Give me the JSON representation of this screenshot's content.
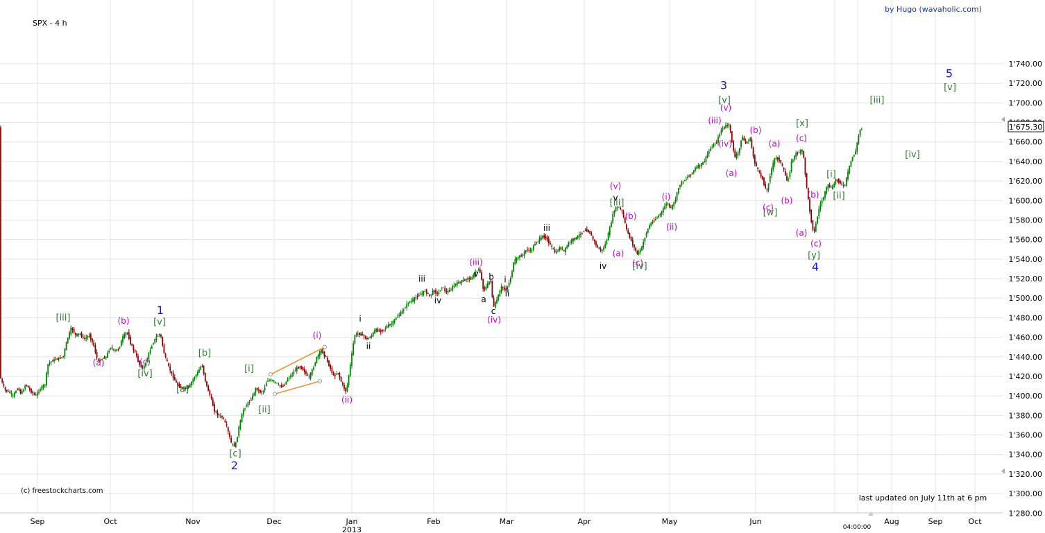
{
  "header": {
    "symbol_label": "SPX - 4 h",
    "author": "by Hugo (wavaholic.com)",
    "copyright": "(c) freestockcharts.com",
    "last_updated": "last updated on July 11th at 6 pm",
    "time_readout": "04:00:00"
  },
  "colors": {
    "up_candle": "#008000",
    "down_candle": "#8b0000",
    "grid": "#e4e4e4",
    "wave_primary": "#1a1acc",
    "wave_intermediate": "#2e7d32",
    "wave_minor": "#cc00cc",
    "wave_minute": "#000000",
    "channel_line": "#f0922b"
  },
  "chart_data": {
    "type": "candlestick",
    "title": "SPX - 4 h",
    "ylim": [
      1270,
      1745
    ],
    "y_ticks": [
      "1'280.00",
      "1'300.00",
      "1'320.00",
      "1'340.00",
      "1'360.00",
      "1'380.00",
      "1'400.00",
      "1'420.00",
      "1'440.00",
      "1'460.00",
      "1'480.00",
      "1'500.00",
      "1'520.00",
      "1'540.00",
      "1'560.00",
      "1'580.00",
      "1'600.00",
      "1'620.00",
      "1'640.00",
      "1'660.00",
      "1'680.00",
      "1'700.00",
      "1'720.00",
      "1'740.00"
    ],
    "x_ticks": [
      "Sep",
      "Oct",
      "Nov",
      "Dec",
      "Jan",
      "Feb",
      "Mar",
      "Apr",
      "May",
      "Jun",
      "Aug",
      "Sep",
      "Oct"
    ],
    "x_year_label": "2013",
    "last_price": "1'675.30",
    "price_path": [
      [
        0,
        1422
      ],
      [
        8,
        1406
      ],
      [
        14,
        1404
      ],
      [
        20,
        1400
      ],
      [
        26,
        1408
      ],
      [
        32,
        1402
      ],
      [
        38,
        1412
      ],
      [
        44,
        1406
      ],
      [
        52,
        1400
      ],
      [
        60,
        1408
      ],
      [
        66,
        1412
      ],
      [
        70,
        1432
      ],
      [
        76,
        1436
      ],
      [
        84,
        1438
      ],
      [
        92,
        1440
      ],
      [
        98,
        1458
      ],
      [
        104,
        1470
      ],
      [
        110,
        1462
      ],
      [
        116,
        1464
      ],
      [
        122,
        1458
      ],
      [
        130,
        1462
      ],
      [
        136,
        1452
      ],
      [
        142,
        1435
      ],
      [
        148,
        1438
      ],
      [
        154,
        1440
      ],
      [
        160,
        1450
      ],
      [
        166,
        1446
      ],
      [
        172,
        1448
      ],
      [
        178,
        1460
      ],
      [
        184,
        1466
      ],
      [
        190,
        1452
      ],
      [
        196,
        1444
      ],
      [
        202,
        1432
      ],
      [
        208,
        1428
      ],
      [
        214,
        1440
      ],
      [
        220,
        1452
      ],
      [
        226,
        1460
      ],
      [
        232,
        1464
      ],
      [
        238,
        1442
      ],
      [
        244,
        1430
      ],
      [
        250,
        1420
      ],
      [
        256,
        1412
      ],
      [
        262,
        1408
      ],
      [
        268,
        1408
      ],
      [
        274,
        1410
      ],
      [
        280,
        1418
      ],
      [
        286,
        1424
      ],
      [
        292,
        1432
      ],
      [
        298,
        1412
      ],
      [
        304,
        1400
      ],
      [
        310,
        1385
      ],
      [
        316,
        1380
      ],
      [
        322,
        1378
      ],
      [
        328,
        1368
      ],
      [
        334,
        1352
      ],
      [
        340,
        1348
      ],
      [
        346,
        1370
      ],
      [
        352,
        1386
      ],
      [
        358,
        1392
      ],
      [
        364,
        1398
      ],
      [
        370,
        1408
      ],
      [
        376,
        1404
      ],
      [
        380,
        1404
      ],
      [
        386,
        1416
      ],
      [
        392,
        1416
      ],
      [
        398,
        1414
      ],
      [
        404,
        1410
      ],
      [
        410,
        1410
      ],
      [
        416,
        1418
      ],
      [
        422,
        1422
      ],
      [
        428,
        1428
      ],
      [
        434,
        1430
      ],
      [
        440,
        1425
      ],
      [
        446,
        1418
      ],
      [
        452,
        1428
      ],
      [
        458,
        1440
      ],
      [
        464,
        1447
      ],
      [
        470,
        1440
      ],
      [
        476,
        1430
      ],
      [
        482,
        1420
      ],
      [
        488,
        1424
      ],
      [
        494,
        1412
      ],
      [
        500,
        1404
      ],
      [
        506,
        1432
      ],
      [
        512,
        1462
      ],
      [
        518,
        1464
      ],
      [
        524,
        1462
      ],
      [
        530,
        1458
      ],
      [
        536,
        1461
      ],
      [
        542,
        1468
      ],
      [
        548,
        1466
      ],
      [
        554,
        1468
      ],
      [
        560,
        1472
      ],
      [
        566,
        1474
      ],
      [
        572,
        1480
      ],
      [
        578,
        1484
      ],
      [
        584,
        1490
      ],
      [
        590,
        1496
      ],
      [
        596,
        1498
      ],
      [
        602,
        1502
      ],
      [
        608,
        1504
      ],
      [
        614,
        1508
      ],
      [
        620,
        1502
      ],
      [
        626,
        1508
      ],
      [
        632,
        1504
      ],
      [
        638,
        1512
      ],
      [
        644,
        1506
      ],
      [
        650,
        1508
      ],
      [
        656,
        1514
      ],
      [
        662,
        1516
      ],
      [
        668,
        1518
      ],
      [
        674,
        1520
      ],
      [
        680,
        1520
      ],
      [
        686,
        1526
      ],
      [
        692,
        1530
      ],
      [
        698,
        1508
      ],
      [
        704,
        1514
      ],
      [
        708,
        1520
      ],
      [
        712,
        1490
      ],
      [
        718,
        1500
      ],
      [
        724,
        1512
      ],
      [
        730,
        1508
      ],
      [
        736,
        1518
      ],
      [
        742,
        1538
      ],
      [
        748,
        1542
      ],
      [
        754,
        1544
      ],
      [
        760,
        1550
      ],
      [
        766,
        1548
      ],
      [
        772,
        1556
      ],
      [
        778,
        1560
      ],
      [
        784,
        1564
      ],
      [
        790,
        1560
      ],
      [
        796,
        1552
      ],
      [
        802,
        1546
      ],
      [
        808,
        1552
      ],
      [
        814,
        1548
      ],
      [
        820,
        1556
      ],
      [
        826,
        1560
      ],
      [
        832,
        1562
      ],
      [
        838,
        1566
      ],
      [
        844,
        1570
      ],
      [
        850,
        1568
      ],
      [
        856,
        1560
      ],
      [
        862,
        1552
      ],
      [
        868,
        1548
      ],
      [
        874,
        1556
      ],
      [
        880,
        1572
      ],
      [
        886,
        1590
      ],
      [
        892,
        1594
      ],
      [
        898,
        1588
      ],
      [
        904,
        1570
      ],
      [
        910,
        1560
      ],
      [
        916,
        1550
      ],
      [
        920,
        1545
      ],
      [
        926,
        1552
      ],
      [
        932,
        1566
      ],
      [
        938,
        1576
      ],
      [
        944,
        1580
      ],
      [
        950,
        1584
      ],
      [
        956,
        1590
      ],
      [
        962,
        1598
      ],
      [
        968,
        1592
      ],
      [
        974,
        1600
      ],
      [
        980,
        1616
      ],
      [
        986,
        1620
      ],
      [
        992,
        1624
      ],
      [
        998,
        1628
      ],
      [
        1004,
        1634
      ],
      [
        1010,
        1636
      ],
      [
        1016,
        1640
      ],
      [
        1022,
        1650
      ],
      [
        1028,
        1656
      ],
      [
        1034,
        1660
      ],
      [
        1040,
        1672
      ],
      [
        1046,
        1676
      ],
      [
        1052,
        1678
      ],
      [
        1056,
        1660
      ],
      [
        1060,
        1644
      ],
      [
        1066,
        1650
      ],
      [
        1070,
        1666
      ],
      [
        1076,
        1658
      ],
      [
        1082,
        1664
      ],
      [
        1088,
        1640
      ],
      [
        1094,
        1630
      ],
      [
        1100,
        1622
      ],
      [
        1106,
        1608
      ],
      [
        1112,
        1630
      ],
      [
        1118,
        1644
      ],
      [
        1124,
        1642
      ],
      [
        1130,
        1632
      ],
      [
        1136,
        1618
      ],
      [
        1142,
        1640
      ],
      [
        1148,
        1648
      ],
      [
        1154,
        1650
      ],
      [
        1158,
        1652
      ],
      [
        1162,
        1624
      ],
      [
        1166,
        1600
      ],
      [
        1170,
        1580
      ],
      [
        1174,
        1566
      ],
      [
        1178,
        1580
      ],
      [
        1182,
        1594
      ],
      [
        1188,
        1604
      ],
      [
        1194,
        1616
      ],
      [
        1200,
        1612
      ],
      [
        1206,
        1622
      ],
      [
        1212,
        1618
      ],
      [
        1218,
        1614
      ],
      [
        1222,
        1626
      ],
      [
        1228,
        1642
      ],
      [
        1234,
        1650
      ],
      [
        1240,
        1672
      ],
      [
        1244,
        1675
      ]
    ],
    "wave_labels": [
      {
        "text": "1",
        "color": "wave_primary",
        "x": 231,
        "y": 1484
      },
      {
        "text": "2",
        "color": "wave_primary",
        "x": 338,
        "y": 1325
      },
      {
        "text": "3",
        "color": "wave_primary",
        "x": 1043,
        "y": 1714
      },
      {
        "text": "4",
        "color": "wave_primary",
        "x": 1175,
        "y": 1528
      },
      {
        "text": "5",
        "color": "wave_primary",
        "x": 1368,
        "y": 1726
      },
      {
        "text": "[iii]",
        "color": "wave_intermediate",
        "x": 91,
        "y": 1477
      },
      {
        "text": "[v]",
        "color": "wave_intermediate",
        "x": 230,
        "y": 1473
      },
      {
        "text": "[iv]",
        "color": "wave_intermediate",
        "x": 209,
        "y": 1420
      },
      {
        "text": "[a]",
        "color": "wave_intermediate",
        "x": 263,
        "y": 1404
      },
      {
        "text": "[b]",
        "color": "wave_intermediate",
        "x": 295,
        "y": 1441
      },
      {
        "text": "[c]",
        "color": "wave_intermediate",
        "x": 339,
        "y": 1338
      },
      {
        "text": "[i]",
        "color": "wave_intermediate",
        "x": 359,
        "y": 1425
      },
      {
        "text": "[ii]",
        "color": "wave_intermediate",
        "x": 381,
        "y": 1383
      },
      {
        "text": "[iii]",
        "color": "wave_intermediate",
        "x": 889,
        "y": 1595
      },
      {
        "text": "[iv]",
        "color": "wave_intermediate",
        "x": 922,
        "y": 1530
      },
      {
        "text": "[v]",
        "color": "wave_intermediate",
        "x": 1044,
        "y": 1700
      },
      {
        "text": "[w]",
        "color": "wave_intermediate",
        "x": 1110,
        "y": 1585
      },
      {
        "text": "[x]",
        "color": "wave_intermediate",
        "x": 1156,
        "y": 1676
      },
      {
        "text": "[y]",
        "color": "wave_intermediate",
        "x": 1173,
        "y": 1541
      },
      {
        "text": "[i]",
        "color": "wave_intermediate",
        "x": 1198,
        "y": 1624
      },
      {
        "text": "[ii]",
        "color": "wave_intermediate",
        "x": 1209,
        "y": 1602
      },
      {
        "text": "[iii]",
        "color": "wave_intermediate",
        "x": 1264,
        "y": 1700
      },
      {
        "text": "[iv]",
        "color": "wave_intermediate",
        "x": 1315,
        "y": 1644
      },
      {
        "text": "[v]",
        "color": "wave_intermediate",
        "x": 1369,
        "y": 1713
      },
      {
        "text": "(a)",
        "color": "wave_minor",
        "x": 142,
        "y": 1431
      },
      {
        "text": "(b)",
        "color": "wave_minor",
        "x": 178,
        "y": 1474
      },
      {
        "text": "(c)",
        "color": "wave_minor",
        "x": 209,
        "y": 1432
      },
      {
        "text": "(i)",
        "color": "wave_minor",
        "x": 457,
        "y": 1459
      },
      {
        "text": "(ii)",
        "color": "wave_minor",
        "x": 500,
        "y": 1393
      },
      {
        "text": "(iii)",
        "color": "wave_minor",
        "x": 686,
        "y": 1534
      },
      {
        "text": "(iv)",
        "color": "wave_minor",
        "x": 712,
        "y": 1475
      },
      {
        "text": "(v)",
        "color": "wave_minor",
        "x": 887,
        "y": 1612
      },
      {
        "text": "(a)",
        "color": "wave_minor",
        "x": 891,
        "y": 1543
      },
      {
        "text": "(b)",
        "color": "wave_minor",
        "x": 909,
        "y": 1581
      },
      {
        "text": "(c)",
        "color": "wave_minor",
        "x": 919,
        "y": 1533
      },
      {
        "text": "(i)",
        "color": "wave_minor",
        "x": 960,
        "y": 1601
      },
      {
        "text": "(ii)",
        "color": "wave_minor",
        "x": 968,
        "y": 1570
      },
      {
        "text": "(iii)",
        "color": "wave_minor",
        "x": 1030,
        "y": 1679
      },
      {
        "text": "(v)",
        "color": "wave_minor",
        "x": 1046,
        "y": 1692
      },
      {
        "text": "(iv)",
        "color": "wave_minor",
        "x": 1045,
        "y": 1655
      },
      {
        "text": "(a)",
        "color": "wave_minor",
        "x": 1054,
        "y": 1625
      },
      {
        "text": "(b)",
        "color": "wave_minor",
        "x": 1089,
        "y": 1669
      },
      {
        "text": "(c)",
        "color": "wave_minor",
        "x": 1107,
        "y": 1590
      },
      {
        "text": "(a)",
        "color": "wave_minor",
        "x": 1116,
        "y": 1655
      },
      {
        "text": "(b)",
        "color": "wave_minor",
        "x": 1134,
        "y": 1597
      },
      {
        "text": "(c)",
        "color": "wave_minor",
        "x": 1155,
        "y": 1661
      },
      {
        "text": "(a)",
        "color": "wave_minor",
        "x": 1155,
        "y": 1564
      },
      {
        "text": "(b)",
        "color": "wave_minor",
        "x": 1172,
        "y": 1603
      },
      {
        "text": "(c)",
        "color": "wave_minor",
        "x": 1176,
        "y": 1553
      },
      {
        "text": "i",
        "color": "wave_minute",
        "x": 519,
        "y": 1476
      },
      {
        "text": "ii",
        "color": "wave_minute",
        "x": 531,
        "y": 1448
      },
      {
        "text": "iii",
        "color": "wave_minute",
        "x": 608,
        "y": 1517
      },
      {
        "text": "iv",
        "color": "wave_minute",
        "x": 631,
        "y": 1495
      },
      {
        "text": "v",
        "color": "wave_minute",
        "x": 686,
        "y": 1522
      },
      {
        "text": "a",
        "color": "wave_minute",
        "x": 697,
        "y": 1496
      },
      {
        "text": "b",
        "color": "wave_minute",
        "x": 708,
        "y": 1519
      },
      {
        "text": "c",
        "color": "wave_minute",
        "x": 711,
        "y": 1484
      },
      {
        "text": "i",
        "color": "wave_minute",
        "x": 728,
        "y": 1516
      },
      {
        "text": "ii",
        "color": "wave_minute",
        "x": 731,
        "y": 1502
      },
      {
        "text": "iii",
        "color": "wave_minute",
        "x": 788,
        "y": 1569
      },
      {
        "text": "iv",
        "color": "wave_minute",
        "x": 869,
        "y": 1530
      },
      {
        "text": "v",
        "color": "wave_minute",
        "x": 887,
        "y": 1600
      }
    ],
    "channel": {
      "upper": [
        [
          390,
          1422
        ],
        [
          468,
          1450
        ]
      ],
      "lower": [
        [
          396,
          1402
        ],
        [
          461,
          1415
        ]
      ]
    }
  }
}
